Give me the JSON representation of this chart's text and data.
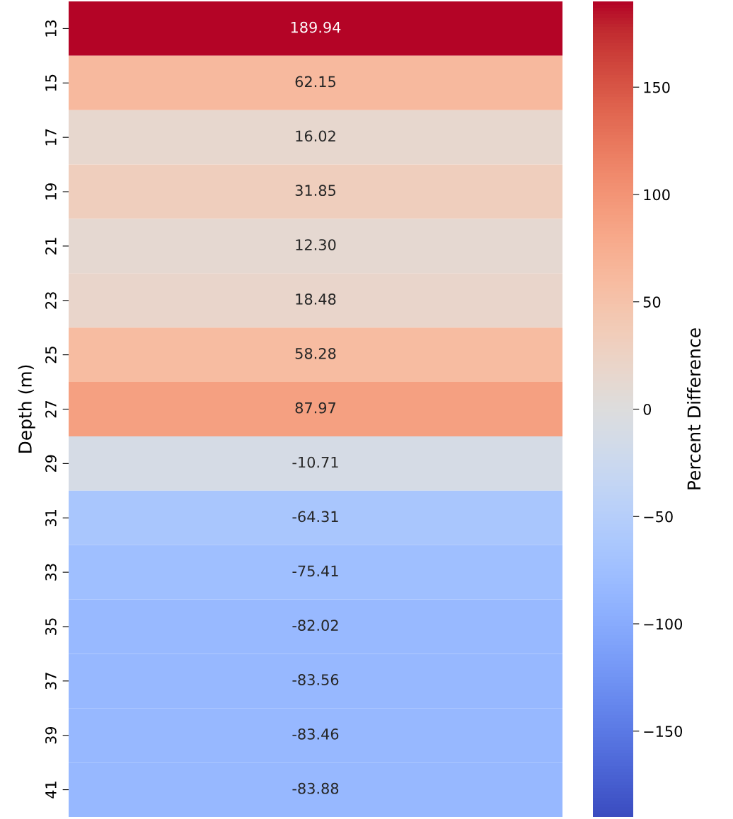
{
  "chart_data": {
    "type": "heatmap",
    "ylabel": "Depth (m)",
    "clabel": "Percent Difference",
    "categories": [
      null
    ],
    "y_categories": [
      "13",
      "15",
      "17",
      "19",
      "21",
      "23",
      "25",
      "27",
      "29",
      "31",
      "33",
      "35",
      "37",
      "39",
      "41"
    ],
    "cells": [
      [
        189.94
      ],
      [
        62.15
      ],
      [
        16.02
      ],
      [
        31.85
      ],
      [
        12.3
      ],
      [
        18.48
      ],
      [
        58.28
      ],
      [
        87.97
      ],
      [
        -10.71
      ],
      [
        -64.31
      ],
      [
        -75.41
      ],
      [
        -82.02
      ],
      [
        -83.56
      ],
      [
        -83.46
      ],
      [
        -83.88
      ]
    ],
    "cell_labels": [
      [
        "189.94"
      ],
      [
        "62.15"
      ],
      [
        "16.02"
      ],
      [
        "31.85"
      ],
      [
        "12.30"
      ],
      [
        "18.48"
      ],
      [
        "58.28"
      ],
      [
        "87.97"
      ],
      [
        "-10.71"
      ],
      [
        "-64.31"
      ],
      [
        "-75.41"
      ],
      [
        "-82.02"
      ],
      [
        "-83.56"
      ],
      [
        "-83.46"
      ],
      [
        "-83.88"
      ]
    ],
    "clim": [
      -189.94,
      189.94
    ],
    "cticks": [
      {
        "value": -150,
        "label": "−150"
      },
      {
        "value": -100,
        "label": "−100"
      },
      {
        "value": -50,
        "label": "−50"
      },
      0,
      50,
      100,
      150
    ],
    "tick_labels": "y"
  }
}
